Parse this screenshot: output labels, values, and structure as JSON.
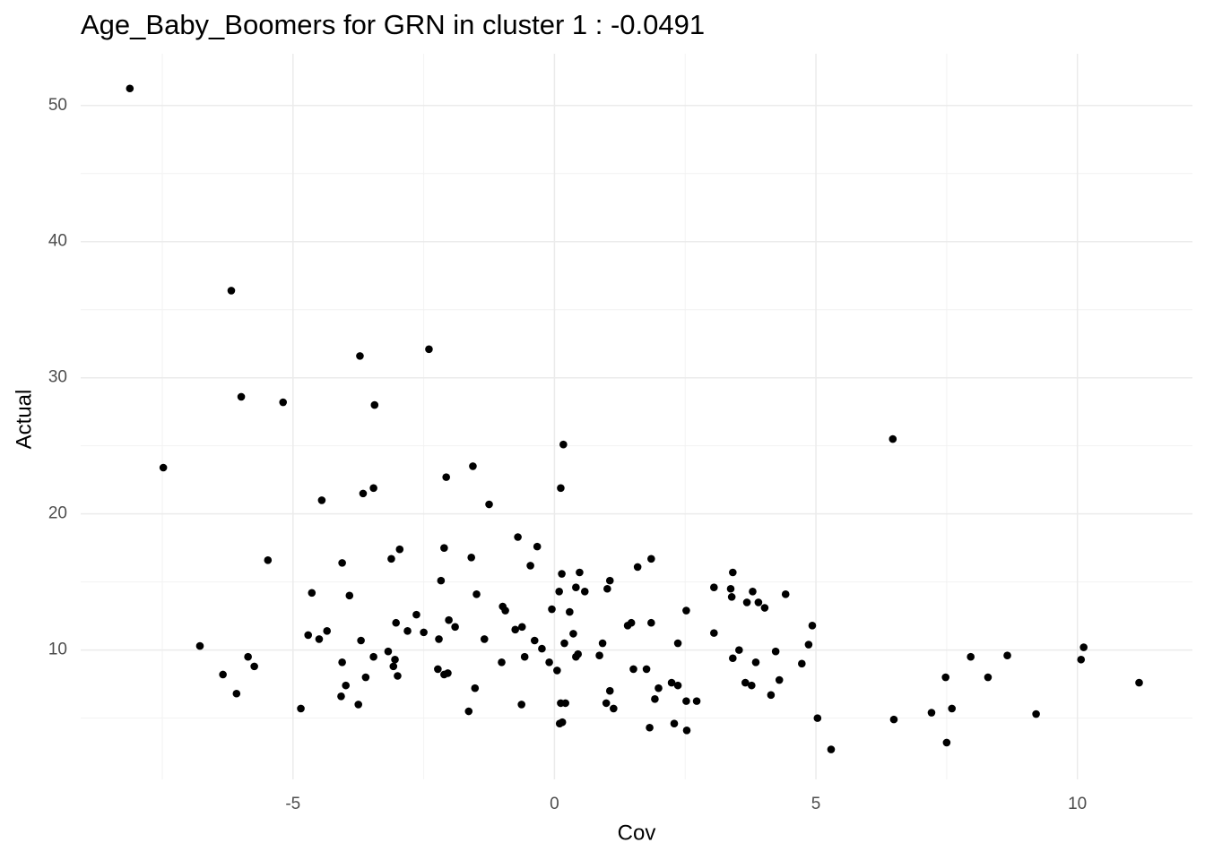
{
  "chart_data": {
    "type": "scatter",
    "title": "Age_Baby_Boomers for GRN in cluster 1 : -0.0491",
    "x_label": "Cov",
    "y_label": "Actual",
    "color": "#000000",
    "grid": true,
    "xlim": [
      -9.06,
      12.2
    ],
    "ylim": [
      0.5,
      53.8
    ],
    "xticks": [
      -5,
      0,
      5,
      10
    ],
    "yticks": [
      10,
      20,
      30,
      40,
      50
    ],
    "x": [
      -8.12,
      -7.48,
      -6.78,
      -6.34,
      -6.18,
      -6.08,
      -5.99,
      -5.86,
      -5.74,
      -5.48,
      -5.19,
      -4.85,
      -4.71,
      -4.64,
      -4.5,
      -4.45,
      -4.35,
      -4.08,
      -4.06,
      -4.06,
      -3.99,
      -3.92,
      -3.75,
      -3.72,
      -3.7,
      -3.66,
      -3.61,
      -3.46,
      -3.46,
      -3.44,
      -3.18,
      -3.12,
      -3.08,
      -3.05,
      -3.03,
      -3.0,
      -2.96,
      -2.81,
      -2.64,
      -2.5,
      -2.4,
      -2.23,
      -2.21,
      -2.17,
      -2.11,
      -2.11,
      -2.07,
      -2.04,
      -2.02,
      -1.9,
      -1.64,
      -1.59,
      -1.56,
      -1.52,
      -1.49,
      -1.34,
      -1.25,
      -1.01,
      -0.99,
      -0.94,
      -0.75,
      -0.7,
      -0.63,
      -0.62,
      -0.57,
      -0.46,
      -0.38,
      -0.33,
      -0.24,
      -0.1,
      -0.05,
      0.05,
      0.09,
      0.1,
      0.12,
      0.12,
      0.14,
      0.15,
      0.17,
      0.19,
      0.21,
      0.29,
      0.36,
      0.41,
      0.41,
      0.45,
      0.48,
      0.58,
      0.86,
      0.92,
      0.99,
      1.01,
      1.06,
      1.06,
      1.13,
      1.4,
      1.47,
      1.51,
      1.59,
      1.76,
      1.82,
      1.85,
      1.85,
      1.92,
      1.99,
      2.24,
      2.29,
      2.36,
      2.36,
      2.52,
      2.52,
      2.53,
      2.72,
      3.05,
      3.05,
      3.37,
      3.39,
      3.41,
      3.41,
      3.53,
      3.65,
      3.68,
      3.77,
      3.79,
      3.85,
      3.9,
      4.02,
      4.14,
      4.23,
      4.3,
      4.42,
      4.73,
      4.86,
      4.93,
      5.03,
      5.29,
      6.47,
      6.49,
      7.21,
      7.48,
      7.5,
      7.6,
      7.96,
      8.29,
      8.66,
      9.21,
      10.07,
      10.12,
      11.18
    ],
    "values": [
      51.25,
      23.4,
      10.3,
      8.2,
      36.4,
      6.8,
      28.6,
      9.5,
      8.8,
      16.6,
      28.2,
      5.7,
      11.1,
      14.2,
      10.8,
      21.0,
      11.4,
      6.6,
      16.4,
      9.1,
      7.4,
      14.0,
      6.0,
      31.6,
      10.7,
      21.5,
      8.0,
      9.5,
      21.9,
      28.0,
      9.9,
      16.7,
      8.8,
      9.3,
      12.0,
      8.1,
      17.4,
      11.4,
      12.6,
      11.3,
      32.1,
      8.6,
      10.8,
      15.1,
      8.2,
      17.5,
      22.7,
      8.3,
      12.2,
      11.7,
      5.5,
      16.8,
      23.5,
      7.2,
      14.1,
      10.8,
      20.7,
      9.1,
      13.2,
      12.9,
      11.5,
      18.3,
      6.0,
      11.7,
      9.5,
      16.2,
      10.7,
      17.6,
      10.1,
      9.1,
      13.0,
      8.5,
      14.3,
      4.6,
      6.1,
      21.9,
      15.6,
      4.7,
      25.1,
      10.5,
      6.1,
      12.8,
      11.2,
      14.6,
      9.5,
      9.7,
      15.7,
      14.3,
      9.6,
      10.5,
      6.1,
      14.5,
      15.1,
      7.0,
      5.7,
      11.8,
      12.0,
      8.6,
      16.1,
      8.6,
      4.3,
      16.7,
      12.0,
      6.4,
      7.2,
      7.6,
      4.6,
      10.5,
      7.4,
      12.9,
      6.25,
      4.1,
      6.25,
      14.6,
      11.25,
      14.5,
      13.9,
      15.7,
      9.4,
      10.0,
      7.6,
      13.5,
      7.4,
      14.3,
      9.1,
      13.5,
      13.1,
      6.7,
      9.9,
      7.8,
      14.1,
      9.0,
      10.4,
      11.8,
      5.0,
      2.7,
      25.5,
      4.9,
      5.4,
      8.0,
      3.2,
      5.7,
      9.5,
      8.0,
      9.6,
      5.3,
      9.3,
      10.2,
      7.6
    ]
  }
}
